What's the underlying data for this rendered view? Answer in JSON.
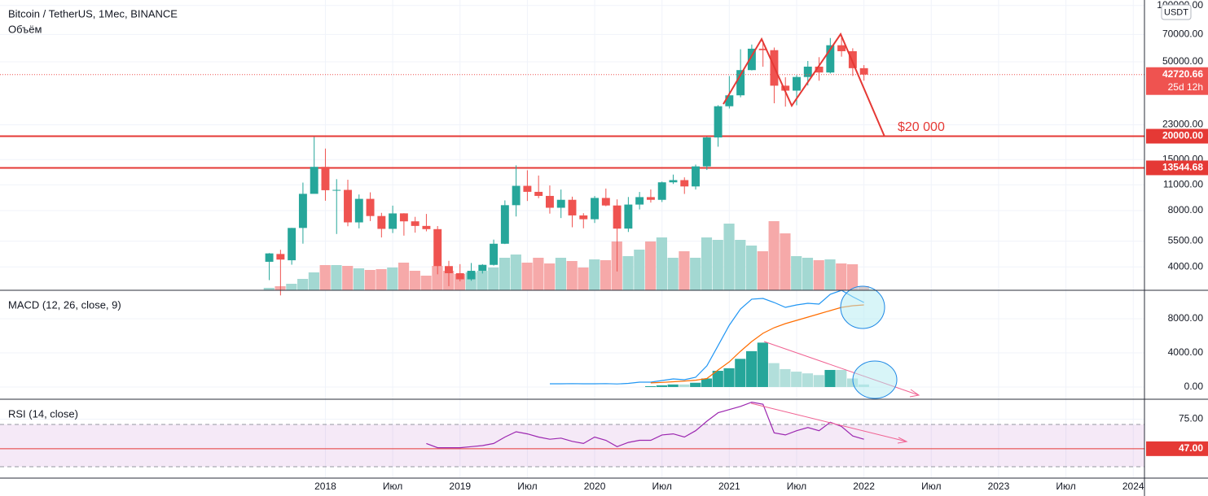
{
  "chart_data": [
    {
      "type": "candlestick",
      "title": "Bitcoin / TetherUS, 1Мес, BINANCE",
      "currency": "USDT",
      "log_scale": true,
      "x": [
        "2017-08",
        "2017-09",
        "2017-10",
        "2017-11",
        "2017-12",
        "2018-01",
        "2018-02",
        "2018-03",
        "2018-04",
        "2018-05",
        "2018-06",
        "2018-07",
        "2018-08",
        "2018-09",
        "2018-10",
        "2018-11",
        "2018-12",
        "2019-01",
        "2019-02",
        "2019-03",
        "2019-04",
        "2019-05",
        "2019-06",
        "2019-07",
        "2019-08",
        "2019-09",
        "2019-10",
        "2019-11",
        "2019-12",
        "2020-01",
        "2020-02",
        "2020-03",
        "2020-04",
        "2020-05",
        "2020-06",
        "2020-07",
        "2020-08",
        "2020-09",
        "2020-10",
        "2020-11",
        "2020-12",
        "2021-01",
        "2021-02",
        "2021-03",
        "2021-04",
        "2021-05",
        "2021-06",
        "2021-07",
        "2021-08",
        "2021-09",
        "2021-10",
        "2021-11",
        "2021-12",
        "2022-01"
      ],
      "open": [
        4261,
        4690,
        4341,
        6463,
        9837,
        13716,
        10285,
        10326,
        6922,
        9246,
        7485,
        6391,
        7735,
        7011,
        6626,
        6369,
        4041,
        3701,
        3434,
        3815,
        4102,
        5321,
        8555,
        10854,
        10080,
        9588,
        8289,
        9141,
        7540,
        7195,
        9351,
        8523,
        6412,
        8620,
        9448,
        9138,
        11335,
        11649,
        10776,
        13791,
        19695,
        28923,
        33092,
        45134,
        58739,
        57697,
        37254,
        35045,
        41461,
        47100,
        43820,
        61299,
        56950,
        46216
      ],
      "high": [
        4745,
        4939,
        6470,
        11300,
        19798,
        17176,
        11786,
        11700,
        9759,
        10020,
        7786,
        8507,
        7750,
        7410,
        7680,
        6615,
        4312,
        4140,
        4198,
        4140,
        5600,
        9074,
        13970,
        13147,
        12325,
        10905,
        10370,
        9505,
        7750,
        9575,
        10500,
        9188,
        9460,
        10067,
        10380,
        11444,
        12468,
        12050,
        14100,
        19863,
        29300,
        41950,
        58352,
        61844,
        64854,
        59592,
        41330,
        42448,
        50500,
        52920,
        67000,
        69000,
        59053,
        47990
      ],
      "low": [
        3400,
        2817,
        4110,
        5325,
        10700,
        9035,
        6000,
        6600,
        6430,
        7032,
        5750,
        6070,
        5880,
        6100,
        6200,
        3652,
        3156,
        3349,
        3373,
        3689,
        4067,
        5300,
        7444,
        9010,
        9320,
        7710,
        7300,
        6515,
        6435,
        6871,
        8445,
        3782,
        6150,
        8117,
        8833,
        8893,
        11111,
        9825,
        10374,
        13195,
        17572,
        28130,
        32296,
        44950,
        47044,
        30000,
        28805,
        29278,
        37332,
        39600,
        43283,
        53256,
        42000,
        39650
      ],
      "close": [
        4724,
        4378,
        6463,
        9838,
        13716,
        10285,
        10326,
        6923,
        9246,
        7485,
        6391,
        7730,
        7011,
        6626,
        6371,
        4041,
        3702,
        3434,
        3813,
        4103,
        5321,
        8555,
        10855,
        10085,
        9588,
        8289,
        9140,
        7541,
        7195,
        9352,
        8523,
        6410,
        8620,
        9448,
        9138,
        11335,
        11649,
        10776,
        13791,
        19695,
        28923,
        33092,
        45135,
        58740,
        57694,
        37253,
        35045,
        41461,
        47100,
        43824,
        61299,
        56950,
        46216,
        42720.66
      ],
      "colors": {
        "up": "#26a69a",
        "down": "#ef5350"
      },
      "volume": {
        "name": "Объём",
        "axis": "y2",
        "colors": {
          "up": "#a3d8d2",
          "down": "#f6a9a9"
        },
        "values": [
          3,
          5,
          8,
          14,
          22,
          31,
          31,
          30,
          27,
          25,
          26,
          28,
          34,
          24,
          18,
          30,
          24,
          20,
          22,
          24,
          28,
          40,
          44,
          34,
          40,
          33,
          40,
          36,
          28,
          38,
          37,
          60,
          42,
          50,
          60,
          65,
          40,
          48,
          40,
          65,
          62,
          82,
          62,
          55,
          48,
          85,
          70,
          42,
          40,
          37,
          38,
          33,
          32,
          5
        ]
      },
      "y2lim": [
        0,
        357
      ],
      "ylim": [
        3000,
        107000
      ],
      "yticks": [
        {
          "value": 100000,
          "label": "100000.00"
        },
        {
          "value": 70000,
          "label": "70000.00"
        },
        {
          "value": 50000,
          "label": "50000.00"
        },
        {
          "value": 23000,
          "label": "23000.00"
        },
        {
          "value": 15000,
          "label": "15000.00"
        },
        {
          "value": 11000,
          "label": "11000.00"
        },
        {
          "value": 8000,
          "label": "8000.00"
        },
        {
          "value": 5500,
          "label": "5500.00"
        },
        {
          "value": 4000,
          "label": "4000.00"
        }
      ],
      "levels": [
        {
          "value": 20000,
          "label": "20000.00",
          "color": "#e53935"
        },
        {
          "value": 13544.68,
          "label": "13544.68",
          "color": "#e53935"
        }
      ],
      "last_price": {
        "value": 42720.66,
        "label": "42720.66",
        "countdown": "25d 12h",
        "color": "#ef5350"
      },
      "annotation": "$20 000",
      "xlim": [
        "2015-08",
        "2024-02"
      ],
      "xticks": [
        {
          "value": "2018-01",
          "label": "2018"
        },
        {
          "value": "2018-07",
          "label": "Июл"
        },
        {
          "value": "2019-01",
          "label": "2019"
        },
        {
          "value": "2019-07",
          "label": "Июл"
        },
        {
          "value": "2020-01",
          "label": "2020"
        },
        {
          "value": "2020-07",
          "label": "Июл"
        },
        {
          "value": "2021-01",
          "label": "2021"
        },
        {
          "value": "2021-07",
          "label": "Июл"
        },
        {
          "value": "2022-01",
          "label": "2022"
        },
        {
          "value": "2022-07",
          "label": "Июл"
        },
        {
          "value": "2023-01",
          "label": "2023"
        },
        {
          "value": "2023-07",
          "label": "Июл"
        },
        {
          "value": "2024-01",
          "label": "2024"
        }
      ]
    },
    {
      "type": "line",
      "title": "MACD (12, 26, close, 9)",
      "x": [
        "2019-09",
        "2019-10",
        "2019-11",
        "2019-12",
        "2020-01",
        "2020-02",
        "2020-03",
        "2020-04",
        "2020-05",
        "2020-06",
        "2020-07",
        "2020-08",
        "2020-09",
        "2020-10",
        "2020-11",
        "2020-12",
        "2021-01",
        "2021-02",
        "2021-03",
        "2021-04",
        "2021-05",
        "2021-06",
        "2021-07",
        "2021-08",
        "2021-09",
        "2021-10",
        "2021-11",
        "2021-12",
        "2022-01"
      ],
      "series": [
        {
          "type": "bar",
          "colors": {
            "up": "#26a69a",
            "down": "#b2dfdb"
          },
          "values": [
            null,
            null,
            null,
            null,
            null,
            null,
            null,
            null,
            null,
            100,
            200,
            300,
            300,
            500,
            1000,
            1900,
            2200,
            3300,
            4200,
            5200,
            2800,
            2100,
            1800,
            1600,
            1400,
            2000,
            2000,
            1000,
            300
          ]
        },
        {
          "type": "line",
          "color": "#2196f3",
          "values": [
            380,
            380,
            400,
            380,
            380,
            400,
            360,
            430,
            570,
            570,
            760,
            950,
            860,
            1140,
            2480,
            4860,
            7240,
            9140,
            10290,
            10380,
            9900,
            9330,
            9620,
            9810,
            9710,
            10860,
            11330,
            10570,
            9900
          ]
        },
        {
          "type": "line",
          "color": "#ff6d00",
          "values": [
            null,
            null,
            null,
            null,
            null,
            null,
            null,
            null,
            null,
            480,
            540,
            620,
            700,
            800,
            1000,
            2000,
            2950,
            4190,
            5330,
            6290,
            6950,
            7430,
            7810,
            8190,
            8570,
            8950,
            9330,
            9520,
            9620
          ]
        }
      ],
      "ylim": [
        -1430,
        11330
      ],
      "yticks": [
        {
          "value": 8000,
          "label": "8000.00"
        },
        {
          "value": 4000,
          "label": "4000.00"
        },
        {
          "value": 0,
          "label": "0.00"
        }
      ]
    },
    {
      "type": "line",
      "title": "RSI (14, close)",
      "x": [
        "2018-10",
        "2018-11",
        "2018-12",
        "2019-01",
        "2019-02",
        "2019-03",
        "2019-04",
        "2019-05",
        "2019-06",
        "2019-07",
        "2019-08",
        "2019-09",
        "2019-10",
        "2019-11",
        "2019-12",
        "2020-01",
        "2020-02",
        "2020-03",
        "2020-04",
        "2020-05",
        "2020-06",
        "2020-07",
        "2020-08",
        "2020-09",
        "2020-10",
        "2020-11",
        "2020-12",
        "2021-01",
        "2021-02",
        "2021-03",
        "2021-04",
        "2021-05",
        "2021-06",
        "2021-07",
        "2021-08",
        "2021-09",
        "2021-10",
        "2021-11",
        "2021-12",
        "2022-01"
      ],
      "series": [
        {
          "type": "line",
          "color": "#9c27b0",
          "values": [
            52,
            48,
            48,
            48,
            49,
            50,
            52,
            58,
            63,
            61,
            58,
            56,
            57,
            54,
            52,
            58,
            55,
            49,
            53,
            55,
            55,
            60,
            61,
            58,
            64,
            73,
            81,
            84,
            87,
            91,
            89,
            62,
            60,
            64,
            67,
            64,
            72,
            68,
            59,
            56
          ]
        }
      ],
      "band": [
        30,
        70
      ],
      "band_color": "#9c27b0",
      "hline": {
        "value": 47,
        "label": "47.00",
        "color": "#e53935"
      },
      "ylim": [
        19.2,
        93.8
      ],
      "yticks": [
        {
          "value": 75,
          "label": "75.00"
        }
      ]
    }
  ]
}
